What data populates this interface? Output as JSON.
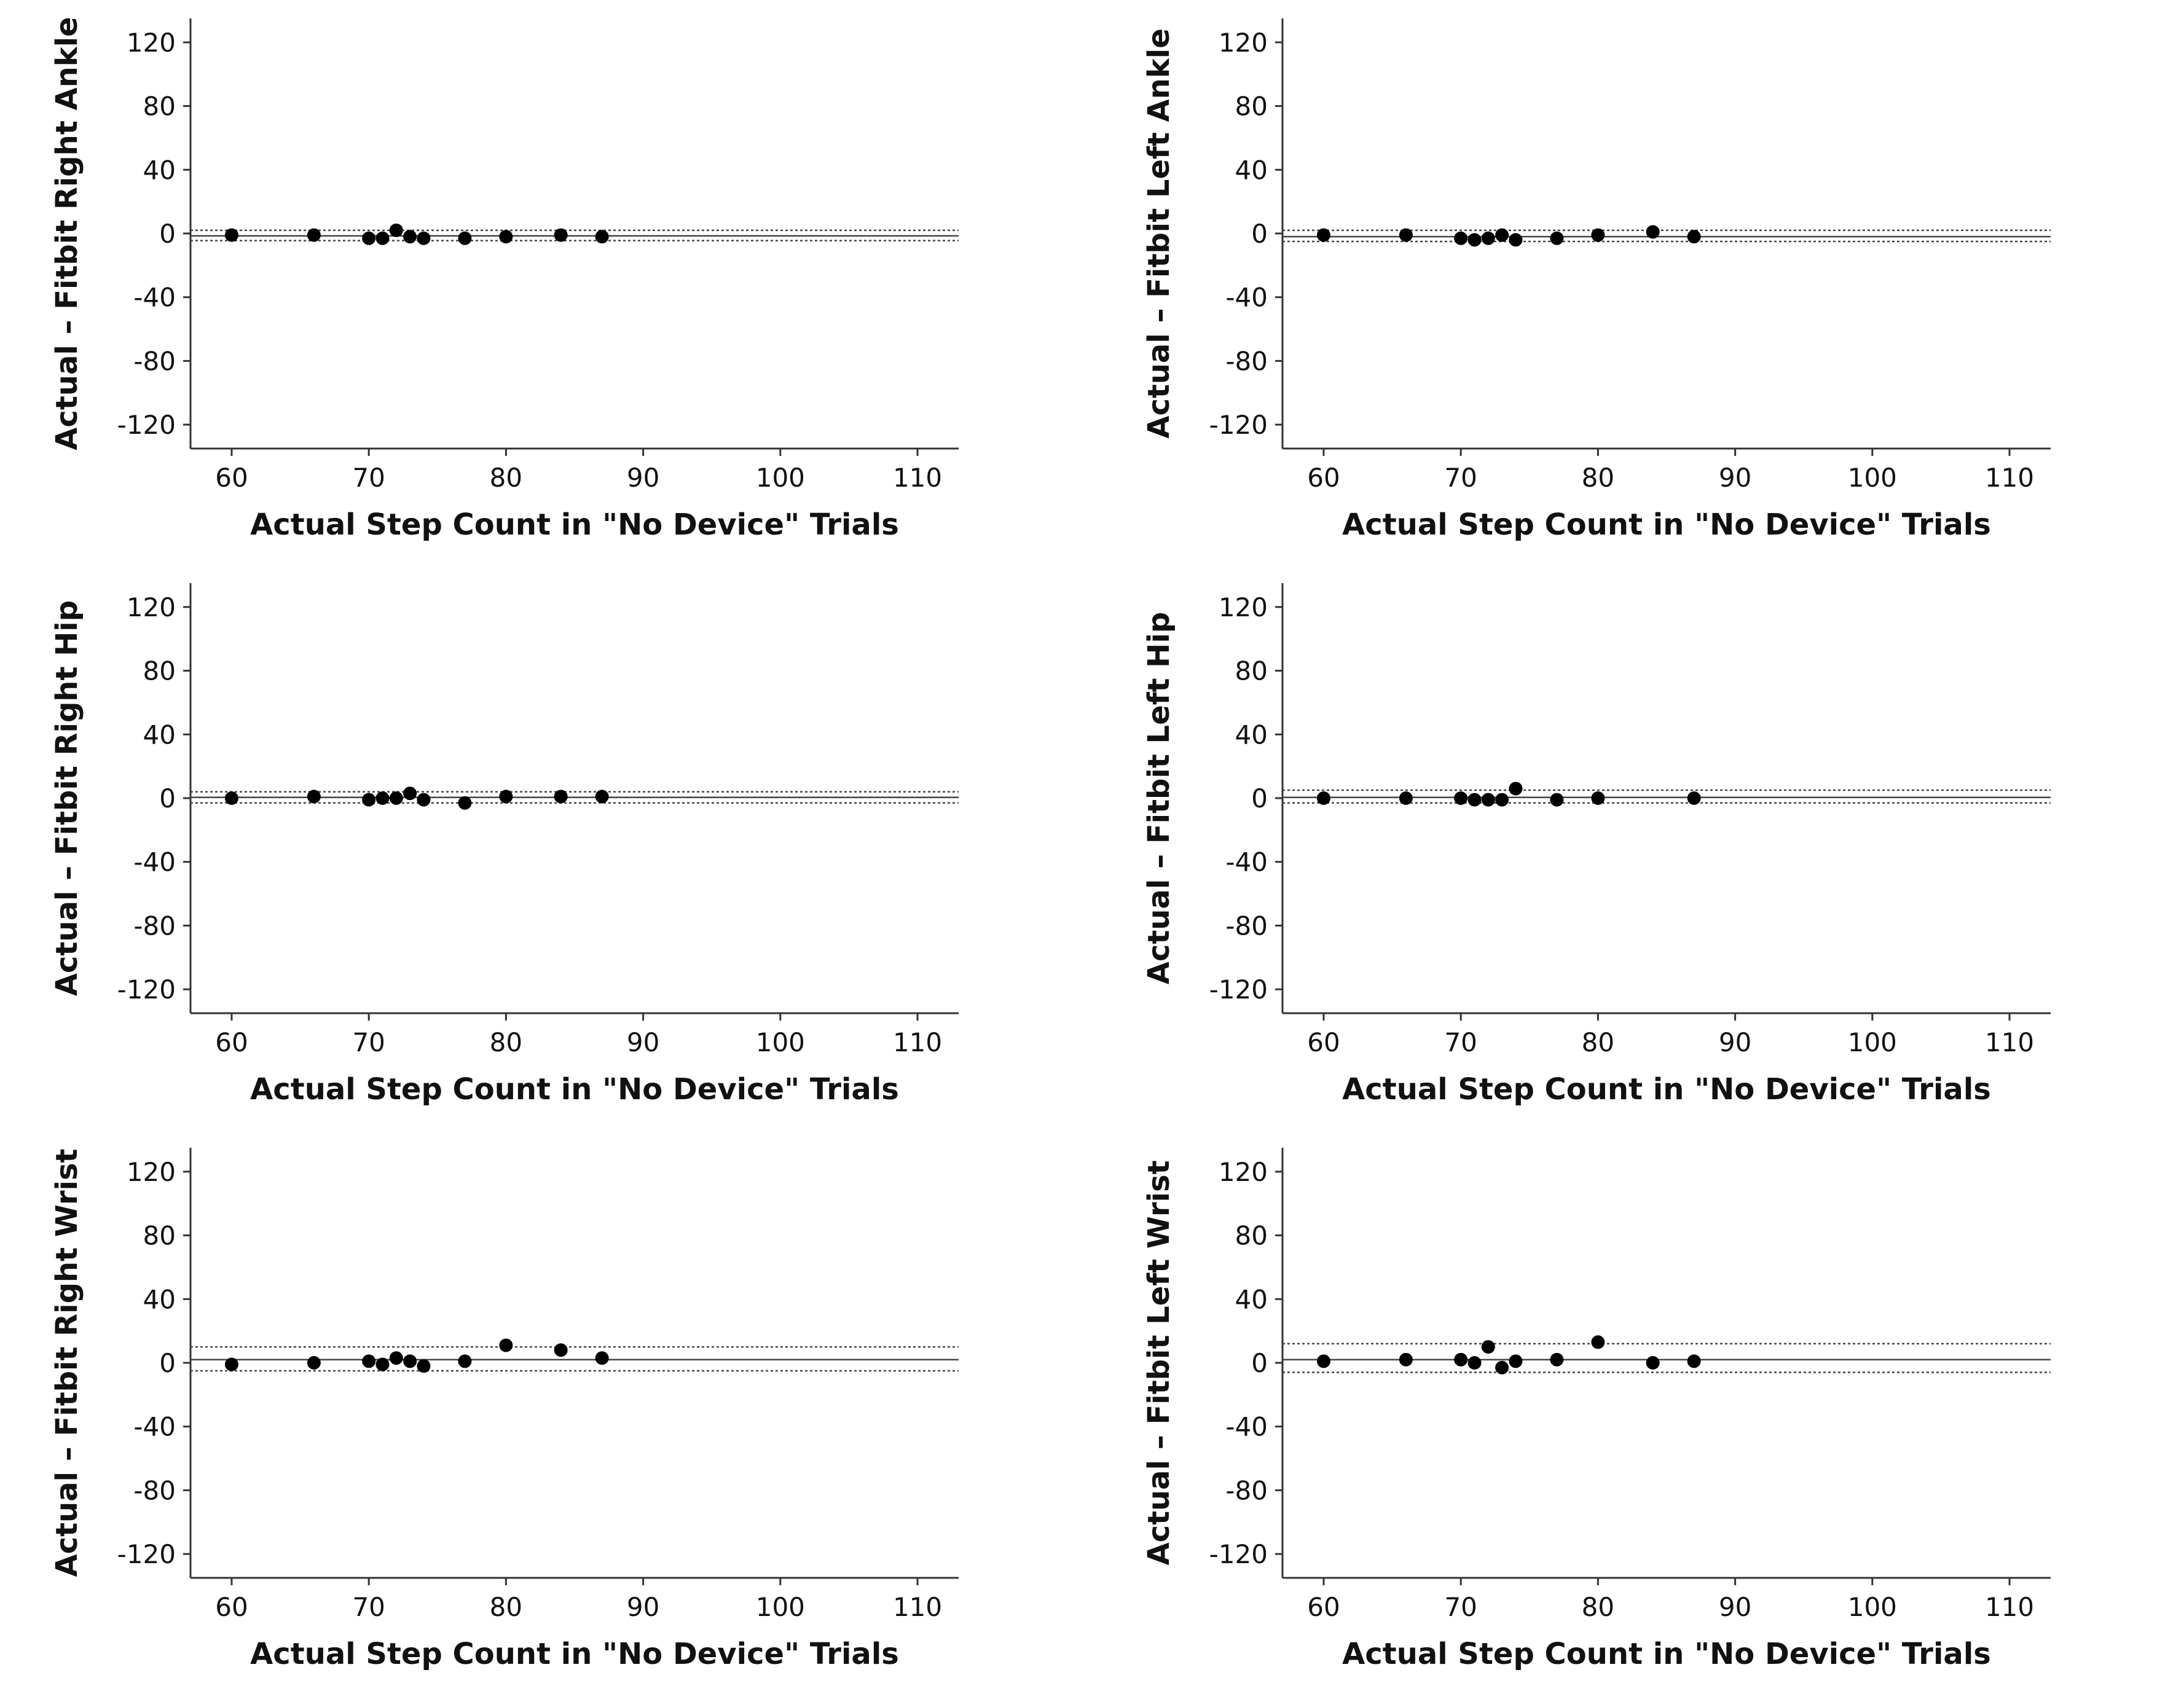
{
  "chart_data": [
    {
      "type": "scatter",
      "xlabel": "Actual Step Count in \"No Device\" Trials",
      "ylabel": "Actual – Fitbit Right Ankle",
      "x": [
        60,
        66,
        70,
        71,
        72,
        73,
        74,
        77,
        80,
        84,
        87
      ],
      "values": [
        -1,
        -1,
        -3,
        -3,
        2,
        -2,
        -3,
        -3,
        -2,
        -1,
        -2
      ],
      "color": "#000000",
      "xlim": [
        57,
        113
      ],
      "ylim": [
        -135,
        135
      ],
      "xticks": [
        60,
        70,
        80,
        90,
        100,
        110
      ],
      "yticks": [
        -120,
        -80,
        -40,
        0,
        40,
        80,
        120
      ],
      "hlines": [
        {
          "value": 2,
          "style": "dotted"
        },
        {
          "value": -1.5,
          "style": "solid"
        },
        {
          "value": -4.5,
          "style": "dotted"
        }
      ]
    },
    {
      "type": "scatter",
      "xlabel": "Actual Step Count in \"No Device\" Trials",
      "ylabel": "Actual – Fitbit Left Ankle",
      "x": [
        60,
        66,
        70,
        71,
        72,
        73,
        74,
        77,
        80,
        84,
        87
      ],
      "values": [
        -1,
        -1,
        -3,
        -4,
        -3,
        -1,
        -4,
        -3,
        -1,
        1,
        -2
      ],
      "color": "#000000",
      "xlim": [
        57,
        113
      ],
      "ylim": [
        -135,
        135
      ],
      "xticks": [
        60,
        70,
        80,
        90,
        100,
        110
      ],
      "yticks": [
        -120,
        -80,
        -40,
        0,
        40,
        80,
        120
      ],
      "hlines": [
        {
          "value": 2,
          "style": "dotted"
        },
        {
          "value": -2,
          "style": "solid"
        },
        {
          "value": -5,
          "style": "dotted"
        }
      ]
    },
    {
      "type": "scatter",
      "xlabel": "Actual Step Count in \"No Device\" Trials",
      "ylabel": "Actual – Fitbit Right Hip",
      "x": [
        60,
        66,
        70,
        71,
        72,
        73,
        74,
        77,
        80,
        84,
        87
      ],
      "values": [
        0,
        1,
        -1,
        0,
        0,
        3,
        -1,
        -3,
        1,
        1,
        1
      ],
      "color": "#000000",
      "xlim": [
        57,
        113
      ],
      "ylim": [
        -135,
        135
      ],
      "xticks": [
        60,
        70,
        80,
        90,
        100,
        110
      ],
      "yticks": [
        -120,
        -80,
        -40,
        0,
        40,
        80,
        120
      ],
      "hlines": [
        {
          "value": 4,
          "style": "dotted"
        },
        {
          "value": 0.5,
          "style": "solid"
        },
        {
          "value": -3,
          "style": "dotted"
        }
      ]
    },
    {
      "type": "scatter",
      "xlabel": "Actual Step Count in \"No Device\" Trials",
      "ylabel": "Actual – Fitbit Left Hip",
      "x": [
        60,
        66,
        70,
        71,
        72,
        73,
        74,
        77,
        80,
        87
      ],
      "values": [
        0,
        0,
        0,
        -1,
        -1,
        -1,
        6,
        -1,
        0,
        0
      ],
      "color": "#000000",
      "xlim": [
        57,
        113
      ],
      "ylim": [
        -135,
        135
      ],
      "xticks": [
        60,
        70,
        80,
        90,
        100,
        110
      ],
      "yticks": [
        -120,
        -80,
        -40,
        0,
        40,
        80,
        120
      ],
      "hlines": [
        {
          "value": 5,
          "style": "dotted"
        },
        {
          "value": 0.5,
          "style": "solid"
        },
        {
          "value": -3,
          "style": "dotted"
        }
      ]
    },
    {
      "type": "scatter",
      "xlabel": "Actual Step Count in \"No Device\" Trials",
      "ylabel": "Actual – Fitbit Right Wrist",
      "x": [
        60,
        66,
        70,
        71,
        72,
        73,
        74,
        77,
        80,
        84,
        87
      ],
      "values": [
        -1,
        0,
        1,
        -1,
        3,
        1,
        -2,
        1,
        11,
        8,
        3
      ],
      "color": "#000000",
      "xlim": [
        57,
        113
      ],
      "ylim": [
        -135,
        135
      ],
      "xticks": [
        60,
        70,
        80,
        90,
        100,
        110
      ],
      "yticks": [
        -120,
        -80,
        -40,
        0,
        40,
        80,
        120
      ],
      "hlines": [
        {
          "value": 10,
          "style": "dotted"
        },
        {
          "value": 2,
          "style": "solid"
        },
        {
          "value": -5,
          "style": "dotted"
        }
      ]
    },
    {
      "type": "scatter",
      "xlabel": "Actual Step Count in \"No Device\" Trials",
      "ylabel": "Actual – Fitbit Left Wrist",
      "x": [
        60,
        66,
        70,
        71,
        72,
        73,
        74,
        77,
        80,
        84,
        87
      ],
      "values": [
        1,
        2,
        2,
        0,
        10,
        -3,
        1,
        2,
        13,
        0,
        1
      ],
      "color": "#000000",
      "xlim": [
        57,
        113
      ],
      "ylim": [
        -135,
        135
      ],
      "xticks": [
        60,
        70,
        80,
        90,
        100,
        110
      ],
      "yticks": [
        -120,
        -80,
        -40,
        0,
        40,
        80,
        120
      ],
      "hlines": [
        {
          "value": 12,
          "style": "dotted"
        },
        {
          "value": 2,
          "style": "solid"
        },
        {
          "value": -6,
          "style": "dotted"
        }
      ]
    }
  ]
}
